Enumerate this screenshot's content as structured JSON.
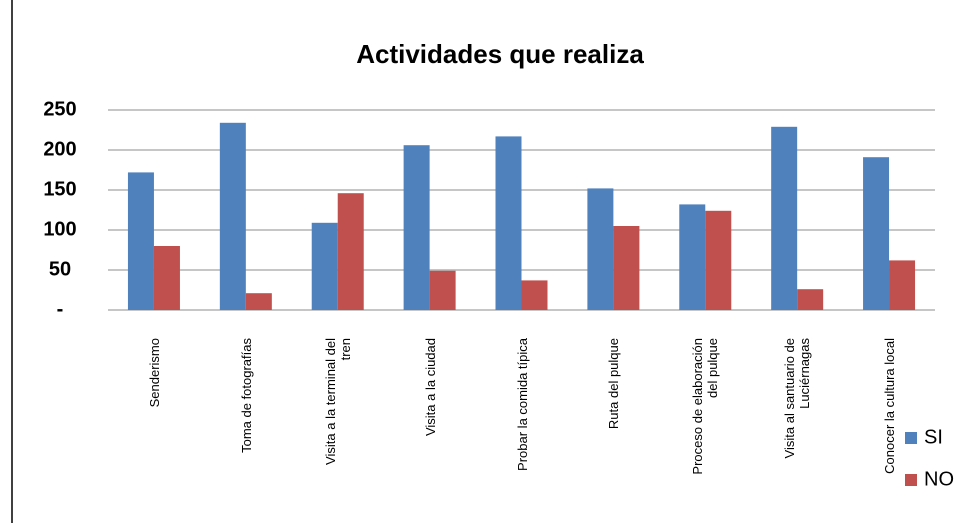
{
  "chart_data": {
    "type": "bar",
    "title": "Actividades que realiza",
    "categories": [
      "Senderismo",
      "Toma de fotografías",
      "Visita a la terminal del tren",
      "Visita a la ciudad",
      "Probar la comida típica",
      "Ruta del pulque",
      "Proceso de elaboración del pulque",
      "Visita al santuario de Luciérnagas",
      "Conocer la cultura local"
    ],
    "series": [
      {
        "name": "SI",
        "color": "#4f81bd",
        "values": [
          172,
          234,
          109,
          206,
          217,
          152,
          132,
          229,
          191
        ]
      },
      {
        "name": "NO",
        "color": "#c0504d",
        "values": [
          80,
          21,
          146,
          49,
          37,
          105,
          124,
          26,
          62
        ]
      }
    ],
    "ylim": [
      0,
      250
    ],
    "yticks": [
      {
        "value": 0,
        "label": "-"
      },
      50,
      100,
      150,
      200,
      250
    ],
    "grid": true,
    "legend": "right"
  }
}
